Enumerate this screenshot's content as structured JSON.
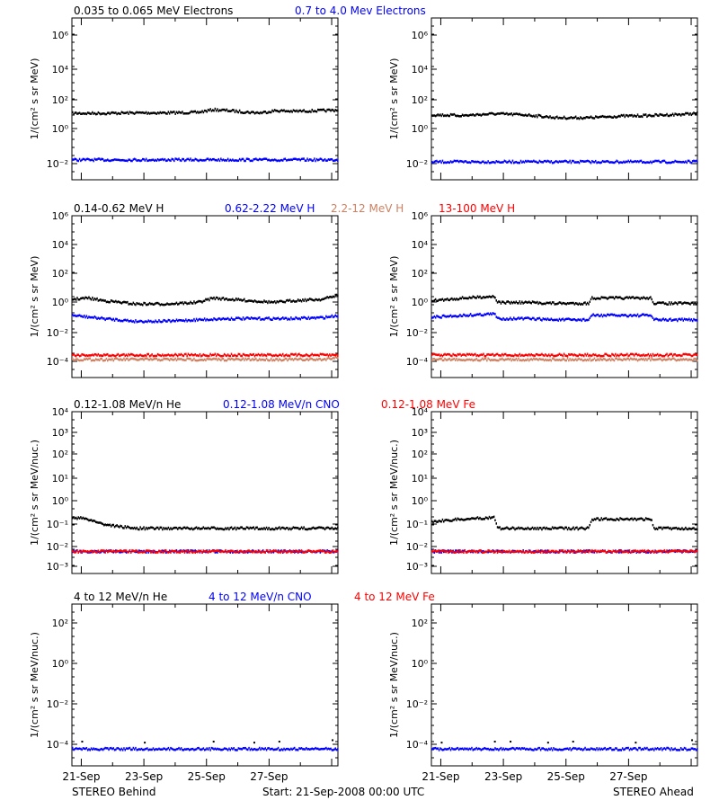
{
  "footer": {
    "left": "STEREO Behind",
    "center": "Start: 21-Sep-2008 00:00 UTC",
    "right": "STEREO Ahead"
  },
  "colors": {
    "black": "#000000",
    "blue": "#0000ff",
    "tan": "#cd8162",
    "red": "#ff0000"
  },
  "x_ticks": [
    "21-Sep",
    "23-Sep",
    "25-Sep",
    "27-Sep"
  ],
  "rows": [
    {
      "legend": [
        {
          "text": "0.035 to 0.065 MeV Electrons",
          "color": "#000000"
        },
        {
          "text": "0.7 to 4.0 Mev Electrons",
          "color": "#0000ff"
        }
      ],
      "ylabel": "1/(cm² s sr MeV)",
      "ytick_labels": [
        "10⁻²",
        "10⁰",
        "10²",
        "10⁴",
        "10⁶"
      ]
    },
    {
      "legend": [
        {
          "text": "0.14-0.62 MeV H",
          "color": "#000000"
        },
        {
          "text": "0.62-2.22 MeV H",
          "color": "#0000ff"
        },
        {
          "text": "2.2-12 MeV H",
          "color": "#cd8162"
        },
        {
          "text": "13-100 MeV H",
          "color": "#ff0000"
        }
      ],
      "ylabel": "1/(cm² s sr MeV)",
      "ytick_labels": [
        "10⁻⁴",
        "10⁻²",
        "10⁰",
        "10²",
        "10⁴",
        "10⁶"
      ]
    },
    {
      "legend": [
        {
          "text": "0.12-1.08 MeV/n He",
          "color": "#000000"
        },
        {
          "text": "0.12-1.08 MeV/n CNO",
          "color": "#0000ff"
        },
        {
          "text": "0.12-1.08 MeV Fe",
          "color": "#ff0000"
        }
      ],
      "ylabel": "1/(cm² s sr MeV/nuc.)",
      "ytick_labels": [
        "10⁻³",
        "10⁻²",
        "10⁻¹",
        "10⁰",
        "10¹",
        "10²",
        "10³",
        "10⁴"
      ]
    },
    {
      "legend": [
        {
          "text": "4 to 12 MeV/n He",
          "color": "#000000"
        },
        {
          "text": "4 to 12 MeV/n CNO",
          "color": "#0000ff"
        },
        {
          "text": "4 to 12 MeV Fe",
          "color": "#ff0000"
        }
      ],
      "ylabel": "1/(cm² s sr MeV/nuc.)",
      "ytick_labels": [
        "10⁻⁴",
        "10⁻²",
        "10⁰",
        "10²"
      ]
    }
  ],
  "chart_data": [
    {
      "type": "scatter",
      "panel": "electrons-behind",
      "yscale": "log",
      "ylim": [
        0.001,
        10000000
      ],
      "x_days": [
        0,
        8.5
      ],
      "series": [
        {
          "name": "0.035 to 0.065 MeV Electrons",
          "color": "#000000",
          "x": [
            0,
            1,
            2,
            3,
            4,
            4.5,
            5,
            5.5,
            6,
            6.5,
            7,
            8,
            8.5
          ],
          "y": [
            15,
            15,
            16,
            16,
            17,
            25,
            22,
            18,
            16,
            22,
            20,
            22,
            24
          ]
        },
        {
          "name": "0.7 to 4.0 Mev Electrons",
          "color": "#0000ff",
          "x": [
            0,
            2,
            4,
            6,
            8,
            8.5
          ],
          "y": [
            0.02,
            0.02,
            0.02,
            0.02,
            0.02,
            0.02
          ]
        }
      ]
    },
    {
      "type": "scatter",
      "panel": "electrons-ahead",
      "yscale": "log",
      "ylim": [
        0.001,
        10000000
      ],
      "x_days": [
        0,
        8.5
      ],
      "series": [
        {
          "name": "0.035 to 0.065 MeV Electrons",
          "color": "#000000",
          "x": [
            0,
            1,
            2,
            3,
            4,
            5,
            6,
            7,
            8,
            8.5
          ],
          "y": [
            12,
            11,
            14,
            12,
            8,
            8,
            10,
            11,
            13,
            15
          ]
        },
        {
          "name": "0.7 to 4.0 Mev Electrons",
          "color": "#0000ff",
          "x": [
            0,
            2,
            4,
            6,
            8,
            8.5
          ],
          "y": [
            0.015,
            0.015,
            0.015,
            0.015,
            0.015,
            0.015
          ]
        }
      ]
    },
    {
      "type": "scatter",
      "panel": "protons-behind",
      "yscale": "log",
      "ylim": [
        1e-05,
        1000000
      ],
      "x_days": [
        0,
        8.5
      ],
      "series": [
        {
          "name": "0.14-0.62 MeV H",
          "color": "#000000",
          "x": [
            0,
            0.5,
            1,
            2,
            3,
            4,
            4.5,
            5,
            6,
            6.5,
            7,
            8,
            8.5
          ],
          "y": [
            2.5,
            3,
            2,
            1.2,
            1.2,
            1.5,
            3,
            2.5,
            1.8,
            1.5,
            2,
            2.5,
            5
          ]
        },
        {
          "name": "0.62-2.22 MeV H",
          "color": "#0000ff",
          "x": [
            0,
            1,
            2,
            3,
            4,
            5,
            6,
            7,
            8,
            8.5
          ],
          "y": [
            0.2,
            0.12,
            0.08,
            0.08,
            0.1,
            0.12,
            0.12,
            0.12,
            0.14,
            0.2
          ]
        },
        {
          "name": "2.2-12 MeV H",
          "color": "#cd8162",
          "x": [
            0,
            2,
            4,
            6,
            8,
            8.5
          ],
          "y": [
            0.0002,
            0.0002,
            0.0002,
            0.0002,
            0.0002,
            0.0003
          ]
        },
        {
          "name": "13-100 MeV H",
          "color": "#ff0000",
          "x": [
            0,
            2,
            4,
            6,
            8,
            8.5
          ],
          "y": [
            0.0004,
            0.0004,
            0.0004,
            0.0004,
            0.0004,
            0.0004
          ]
        }
      ]
    },
    {
      "type": "scatter",
      "panel": "protons-ahead",
      "yscale": "log",
      "ylim": [
        1e-05,
        1000000
      ],
      "x_days": [
        0,
        8.5
      ],
      "series": [
        {
          "name": "0.14-0.62 MeV H",
          "color": "#000000",
          "x": [
            0,
            1,
            2,
            2.1,
            3,
            4,
            5,
            5.1,
            6,
            7,
            7.1,
            8,
            8.5
          ],
          "y": [
            2,
            3,
            4,
            1.5,
            1.5,
            1.3,
            1.3,
            3,
            3,
            3,
            1.3,
            1.3,
            1.3
          ]
        },
        {
          "name": "0.62-2.22 MeV H",
          "color": "#0000ff",
          "x": [
            0,
            1,
            2,
            2.1,
            3,
            4,
            5,
            5.1,
            6,
            7,
            7.1,
            8,
            8.5
          ],
          "y": [
            0.15,
            0.2,
            0.25,
            0.12,
            0.12,
            0.1,
            0.1,
            0.2,
            0.2,
            0.2,
            0.1,
            0.1,
            0.1
          ]
        },
        {
          "name": "2.2-12 MeV H",
          "color": "#cd8162",
          "x": [
            0,
            2,
            4,
            6,
            8,
            8.5
          ],
          "y": [
            0.0002,
            0.0002,
            0.0002,
            0.0002,
            0.0002,
            0.0002
          ]
        },
        {
          "name": "13-100 MeV H",
          "color": "#ff0000",
          "x": [
            0,
            2,
            4,
            6,
            8,
            8.5
          ],
          "y": [
            0.0004,
            0.0004,
            0.0004,
            0.0004,
            0.0004,
            0.0004
          ]
        }
      ]
    },
    {
      "type": "scatter",
      "panel": "heavy-low-behind",
      "yscale": "log",
      "ylim": [
        0.001,
        10000
      ],
      "x_days": [
        0,
        8.5
      ],
      "series": [
        {
          "name": "0.12-1.08 MeV/n He",
          "color": "#000000",
          "x": [
            0,
            0.5,
            1,
            1.5,
            2,
            3,
            4,
            5,
            6,
            7,
            8,
            8.5
          ],
          "y": [
            0.3,
            0.25,
            0.15,
            0.12,
            0.1,
            0.1,
            0.1,
            0.1,
            0.1,
            0.1,
            0.1,
            0.1
          ]
        },
        {
          "name": "0.12-1.08 MeV/n CNO",
          "color": "#0000ff",
          "x": [
            0,
            2,
            4,
            6,
            8,
            8.5
          ],
          "y": [
            0.01,
            0.01,
            0.01,
            0.01,
            0.01,
            0.01
          ]
        },
        {
          "name": "0.12-1.08 MeV Fe",
          "color": "#ff0000",
          "x": [
            0,
            2,
            4,
            6,
            8,
            8.5
          ],
          "y": [
            0.01,
            0.01,
            0.01,
            0.01,
            0.01,
            0.01
          ]
        }
      ]
    },
    {
      "type": "scatter",
      "panel": "heavy-low-ahead",
      "yscale": "log",
      "ylim": [
        0.001,
        10000
      ],
      "x_days": [
        0,
        8.5
      ],
      "series": [
        {
          "name": "0.12-1.08 MeV/n He",
          "color": "#000000",
          "x": [
            0,
            1,
            2,
            2.1,
            3,
            4,
            5,
            5.1,
            6,
            7,
            7.1,
            8,
            8.5
          ],
          "y": [
            0.2,
            0.25,
            0.3,
            0.1,
            0.1,
            0.1,
            0.1,
            0.25,
            0.25,
            0.25,
            0.1,
            0.1,
            0.1
          ]
        },
        {
          "name": "0.12-1.08 MeV/n CNO",
          "color": "#0000ff",
          "x": [
            0,
            2,
            4,
            6,
            8,
            8.5
          ],
          "y": [
            0.01,
            0.01,
            0.01,
            0.01,
            0.01,
            0.01
          ]
        },
        {
          "name": "0.12-1.08 MeV Fe",
          "color": "#ff0000",
          "x": [
            0,
            2,
            4,
            6,
            8,
            8.5
          ],
          "y": [
            0.01,
            0.01,
            0.01,
            0.01,
            0.01,
            0.01
          ]
        }
      ]
    },
    {
      "type": "scatter",
      "panel": "heavy-high-behind",
      "yscale": "log",
      "ylim": [
        1e-05,
        10000
      ],
      "x_days": [
        0,
        8.5
      ],
      "series": [
        {
          "name": "4 to 12 MeV/n He",
          "color": "#000000",
          "x": [
            0.3,
            2.3,
            4.5,
            5.8,
            6.6,
            8.3
          ],
          "y": [
            0.00025,
            0.00022,
            0.00025,
            0.00022,
            0.00025,
            0.0003
          ]
        },
        {
          "name": "4 to 12 MeV/n CNO",
          "color": "#0000ff",
          "x": [
            0,
            2,
            4,
            6,
            8,
            8.5
          ],
          "y": [
            0.0001,
            0.0001,
            0.0001,
            0.0001,
            0.0001,
            0.0001
          ]
        },
        {
          "name": "4 to 12 MeV Fe",
          "color": "#ff0000",
          "x": [],
          "y": []
        }
      ]
    },
    {
      "type": "scatter",
      "panel": "heavy-high-ahead",
      "yscale": "log",
      "ylim": [
        1e-05,
        10000
      ],
      "x_days": [
        0,
        8.5
      ],
      "series": [
        {
          "name": "4 to 12 MeV/n He",
          "color": "#000000",
          "x": [
            0.3,
            2.0,
            2.5,
            3.7,
            4.5,
            6.5,
            8.3
          ],
          "y": [
            0.00022,
            0.00025,
            0.00025,
            0.00022,
            0.00025,
            0.00022,
            0.0003
          ]
        },
        {
          "name": "4 to 12 MeV/n CNO",
          "color": "#0000ff",
          "x": [
            0,
            2,
            4,
            6,
            8,
            8.5
          ],
          "y": [
            0.0001,
            0.0001,
            0.0001,
            0.0001,
            0.0001,
            0.0001
          ]
        },
        {
          "name": "4 to 12 MeV Fe",
          "color": "#ff0000",
          "x": [],
          "y": []
        }
      ]
    }
  ]
}
